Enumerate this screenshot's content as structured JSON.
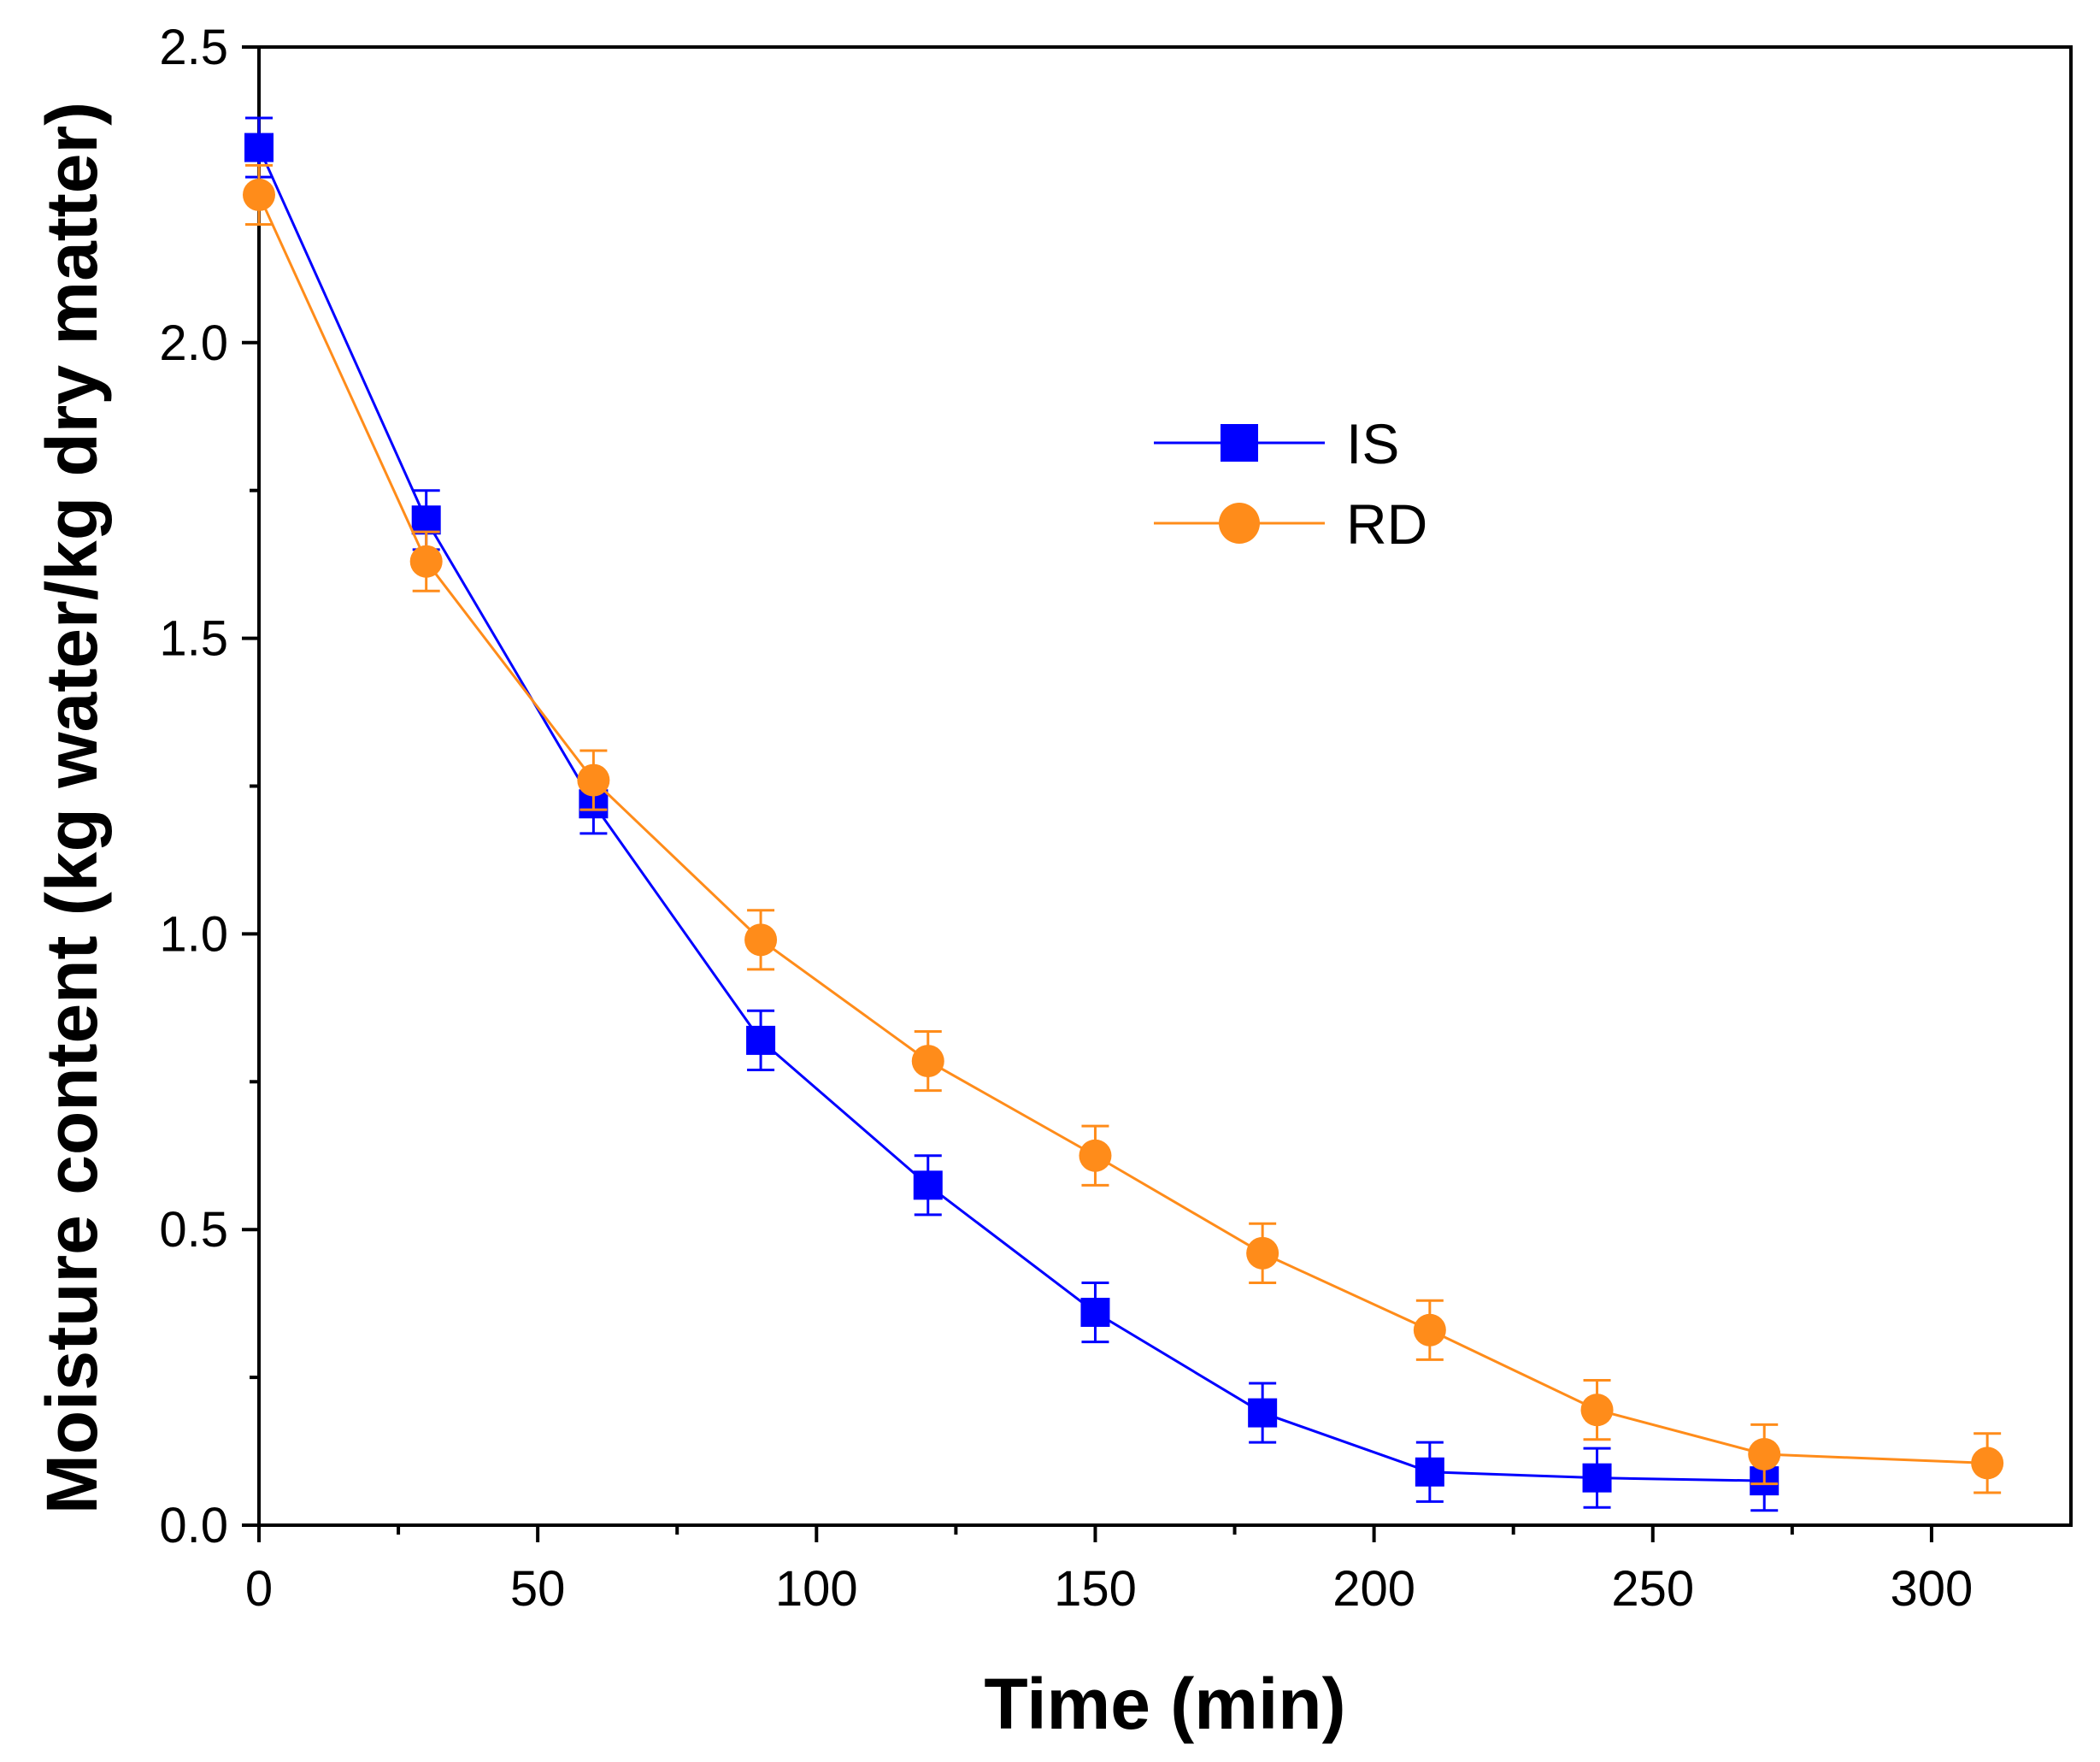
{
  "chart_data": {
    "type": "line",
    "title": "",
    "xlabel": "Time (min)",
    "ylabel": "Moisture content (kg water/kg dry matter)",
    "xlim": [
      0,
      325
    ],
    "ylim": [
      0,
      2.5
    ],
    "xticks": [
      0,
      50,
      100,
      150,
      200,
      250,
      300
    ],
    "xtick_labels": [
      "0",
      "50",
      "100",
      "150",
      "200",
      "250",
      "300"
    ],
    "yticks": [
      0,
      0.5,
      1.0,
      1.5,
      2.0,
      2.5
    ],
    "ytick_labels": [
      "0.0",
      "0.5",
      "1.0",
      "1.5",
      "2.0",
      "2.5"
    ],
    "grid": false,
    "legend_position": "upper-center-right",
    "series": [
      {
        "name": "IS",
        "marker": "square",
        "color": "#0000ff",
        "x": [
          0,
          30,
          60,
          90,
          120,
          150,
          180,
          210,
          240,
          270
        ],
        "y": [
          2.33,
          1.7,
          1.22,
          0.82,
          0.575,
          0.36,
          0.19,
          0.09,
          0.08,
          0.075
        ],
        "error": [
          0.05,
          0.05,
          0.05,
          0.05,
          0.05,
          0.05,
          0.05,
          0.05,
          0.05,
          0.05
        ]
      },
      {
        "name": "RD",
        "marker": "circle",
        "color": "#ff8c1a",
        "x": [
          0,
          30,
          60,
          90,
          120,
          150,
          180,
          210,
          240,
          270,
          310
        ],
        "y": [
          2.25,
          1.63,
          1.26,
          0.99,
          0.785,
          0.625,
          0.46,
          0.33,
          0.195,
          0.12,
          0.105
        ],
        "error": [
          0.05,
          0.05,
          0.05,
          0.05,
          0.05,
          0.05,
          0.05,
          0.05,
          0.05,
          0.05,
          0.05
        ]
      }
    ]
  }
}
